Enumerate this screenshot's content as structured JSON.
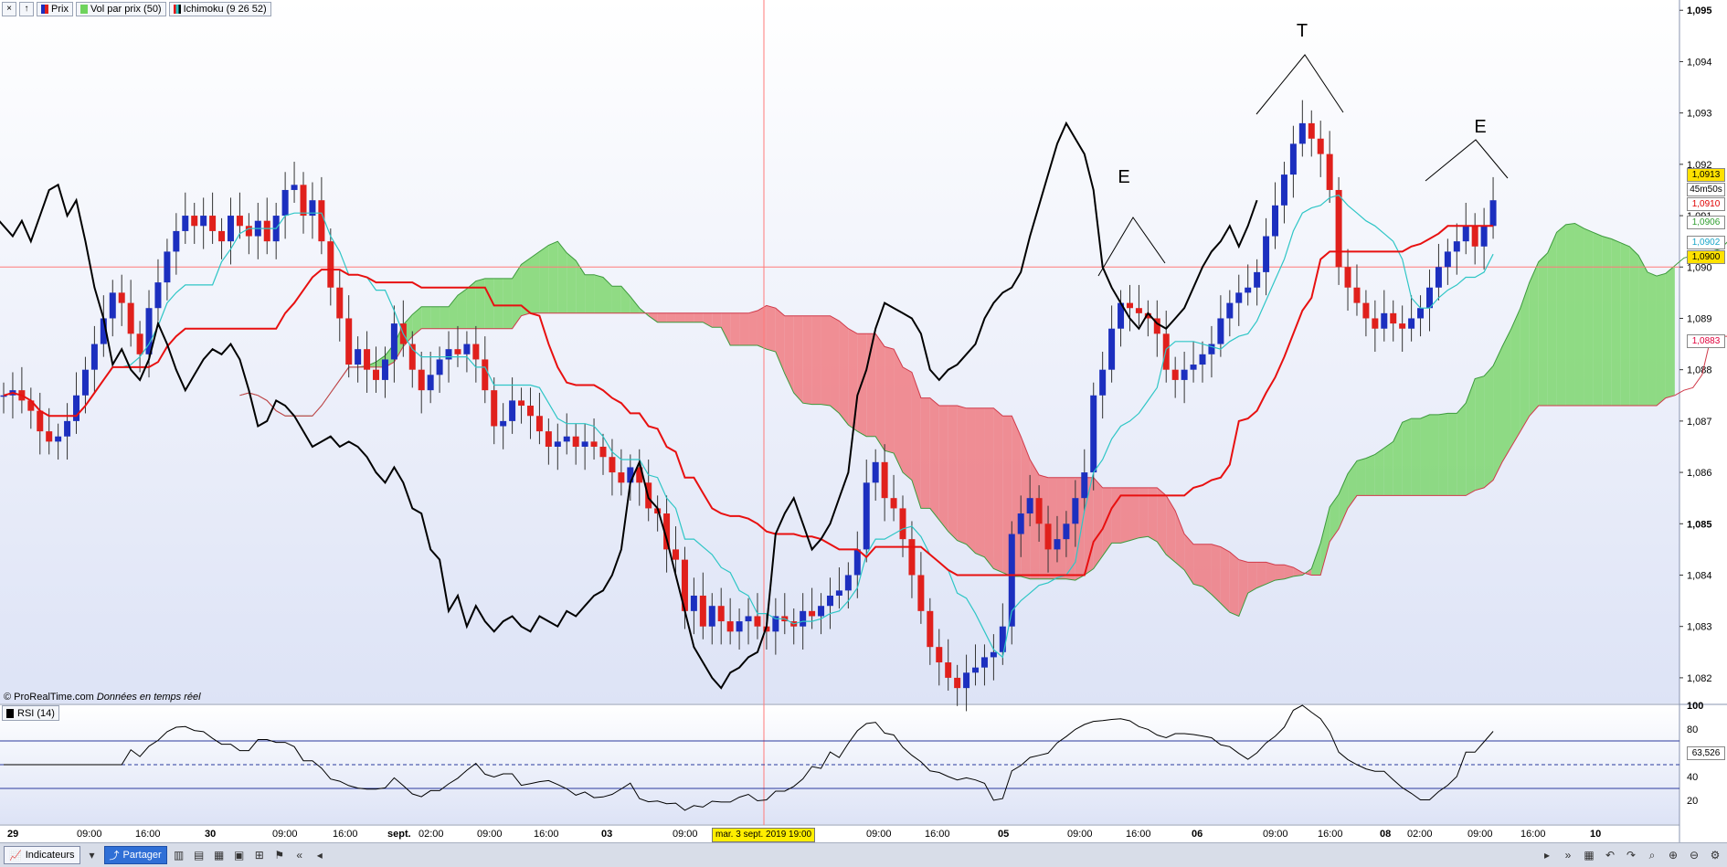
{
  "legend": {
    "prix": "Prix",
    "vol": "Vol par prix (50)",
    "ichimoku": "Ichimoku (9 26 52)"
  },
  "copyright": {
    "source": "© ProRealTime.com",
    "note": "Données en temps réel"
  },
  "rsi": {
    "label": "RSI (14)",
    "value": "63,526"
  },
  "price_tags": [
    {
      "text": "1,0913",
      "bg": "#ffe100",
      "fg": "#000000"
    },
    {
      "text": "45m50s",
      "bg": "#ffffff",
      "fg": "#000000"
    },
    {
      "text": "1,0910",
      "bg": "#ffffff",
      "fg": "#e00000"
    },
    {
      "text": "1,0906",
      "bg": "#ffffff",
      "fg": "#2e9e2e"
    },
    {
      "text": "1,0902",
      "bg": "#ffffff",
      "fg": "#1aa6c8"
    },
    {
      "text": "1,0900",
      "bg": "#ffe100",
      "fg": "#000000"
    },
    {
      "text": "1,0883",
      "bg": "#ffffff",
      "fg": "#e0003c"
    }
  ],
  "cursor_date": "mar. 3 sept. 2019 19:00",
  "annotations": [
    "E",
    "T",
    "E"
  ],
  "toolbar": {
    "indicators": "Indicateurs",
    "share": "Partager"
  },
  "colors": {
    "bull": "#1c2fbf",
    "bear": "#e0201c",
    "kijun": "#e81010",
    "tenkan": "#2fc6c6",
    "chikou": "#000000",
    "cloud_bull": "#6fd35c",
    "cloud_bear": "#f06c72"
  },
  "chart_data": {
    "type": "candlestick",
    "title": "",
    "y_ticks": [
      "1,095",
      "1,094",
      "1,093",
      "1,092",
      "1,091",
      "1,090",
      "1,089",
      "1,088",
      "1,087",
      "1,086",
      "1,085",
      "1,084",
      "1,083",
      "1,082"
    ],
    "ylim": [
      1.0815,
      1.0952
    ],
    "x_labels": [
      {
        "text": "29",
        "bold": true
      },
      {
        "text": "09:00"
      },
      {
        "text": "16:00"
      },
      {
        "text": "30",
        "bold": true
      },
      {
        "text": "09:00"
      },
      {
        "text": "16:00"
      },
      {
        "text": "sept.",
        "bold": true
      },
      {
        "text": "02:00"
      },
      {
        "text": "09:00"
      },
      {
        "text": "16:00"
      },
      {
        "text": "03",
        "bold": true
      },
      {
        "text": "09:00"
      },
      {
        "text": "09:00"
      },
      {
        "text": "16:00"
      },
      {
        "text": "05",
        "bold": true
      },
      {
        "text": "09:00"
      },
      {
        "text": "16:00"
      },
      {
        "text": "06",
        "bold": true
      },
      {
        "text": "09:00"
      },
      {
        "text": "16:00"
      },
      {
        "text": "08",
        "bold": true
      },
      {
        "text": "02:00"
      },
      {
        "text": "09:00"
      },
      {
        "text": "16:00"
      },
      {
        "text": "10",
        "bold": true
      }
    ],
    "close": [
      1.0875,
      1.0876,
      1.0874,
      1.0872,
      1.0868,
      1.0866,
      1.0867,
      1.087,
      1.0875,
      1.088,
      1.0885,
      1.089,
      1.0895,
      1.0893,
      1.0887,
      1.0883,
      1.0892,
      1.0897,
      1.0903,
      1.0907,
      1.091,
      1.0908,
      1.091,
      1.0907,
      1.0905,
      1.091,
      1.0908,
      1.0906,
      1.0909,
      1.0905,
      1.091,
      1.0915,
      1.0916,
      1.091,
      1.0913,
      1.0905,
      1.0896,
      1.089,
      1.0881,
      1.0884,
      1.088,
      1.0878,
      1.0882,
      1.0889,
      1.0885,
      1.088,
      1.0876,
      1.0879,
      1.0882,
      1.0884,
      1.0883,
      1.0885,
      1.0882,
      1.0876,
      1.0869,
      1.087,
      1.0874,
      1.0873,
      1.0871,
      1.0868,
      1.0865,
      1.0866,
      1.0867,
      1.0865,
      1.0866,
      1.0865,
      1.0863,
      1.086,
      1.0858,
      1.0861,
      1.0858,
      1.0853,
      1.0852,
      1.0845,
      1.0843,
      1.0833,
      1.0836,
      1.083,
      1.0834,
      1.0831,
      1.0829,
      1.0831,
      1.0832,
      1.083,
      1.0829,
      1.0832,
      1.0831,
      1.083,
      1.0833,
      1.0832,
      1.0834,
      1.0836,
      1.0837,
      1.084,
      1.0845,
      1.0858,
      1.0862,
      1.0855,
      1.0853,
      1.0847,
      1.084,
      1.0833,
      1.0826,
      1.0823,
      1.082,
      1.0818,
      1.0821,
      1.0822,
      1.0824,
      1.0825,
      1.083,
      1.0848,
      1.0852,
      1.0855,
      1.085,
      1.0845,
      1.0847,
      1.085,
      1.0855,
      1.086,
      1.0875,
      1.088,
      1.0888,
      1.0893,
      1.0892,
      1.0891,
      1.089,
      1.0887,
      1.088,
      1.0878,
      1.088,
      1.0881,
      1.0883,
      1.0885,
      1.089,
      1.0893,
      1.0895,
      1.0896,
      1.0899,
      1.0906,
      1.0912,
      1.0918,
      1.0924,
      1.0928,
      1.0925,
      1.0922,
      1.0915,
      1.09,
      1.0896,
      1.0893,
      1.089,
      1.0888,
      1.0891,
      1.0889,
      1.0888,
      1.089,
      1.0892,
      1.0896,
      1.09,
      1.0903,
      1.0905,
      1.0908,
      1.0904,
      1.0908,
      1.0913
    ]
  }
}
